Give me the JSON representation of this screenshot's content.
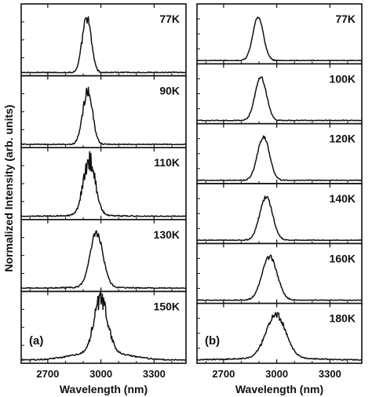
{
  "figure": {
    "ylabel": "Normalized Intensity (arb. units)"
  },
  "chart_data": [
    {
      "type": "line",
      "panel_label": "(a)",
      "xlabel": "Wavelength (nm)",
      "xlim": [
        2550,
        3480
      ],
      "xticks": [
        2700,
        3000,
        3300
      ],
      "grid": false,
      "series": [
        {
          "name": "77K",
          "center": 2920,
          "fwhm": 60,
          "noise": 0.1,
          "baseline": 0.0
        },
        {
          "name": "90K",
          "center": 2925,
          "fwhm": 65,
          "noise": 0.12,
          "baseline": 0.0
        },
        {
          "name": "110K",
          "center": 2935,
          "fwhm": 80,
          "noise": 0.18,
          "baseline": 0.02
        },
        {
          "name": "130K",
          "center": 2975,
          "fwhm": 85,
          "noise": 0.06,
          "baseline": 0.02
        },
        {
          "name": "150K",
          "center": 3000,
          "fwhm": 90,
          "noise": 0.2,
          "baseline": 0.15
        }
      ]
    },
    {
      "type": "line",
      "panel_label": "(b)",
      "xlabel": "Wavelength (nm)",
      "xlim": [
        2550,
        3480
      ],
      "xticks": [
        2700,
        3000,
        3300
      ],
      "grid": false,
      "series": [
        {
          "name": "77K",
          "center": 2895,
          "fwhm": 70,
          "noise": 0.02,
          "baseline": 0.0
        },
        {
          "name": "100K",
          "center": 2910,
          "fwhm": 75,
          "noise": 0.04,
          "baseline": 0.0
        },
        {
          "name": "120K",
          "center": 2925,
          "fwhm": 80,
          "noise": 0.04,
          "baseline": 0.0
        },
        {
          "name": "140K",
          "center": 2940,
          "fwhm": 85,
          "noise": 0.05,
          "baseline": 0.0
        },
        {
          "name": "160K",
          "center": 2960,
          "fwhm": 100,
          "noise": 0.05,
          "baseline": 0.0
        },
        {
          "name": "180K",
          "center": 2995,
          "fwhm": 130,
          "noise": 0.08,
          "baseline": 0.05
        }
      ]
    }
  ]
}
